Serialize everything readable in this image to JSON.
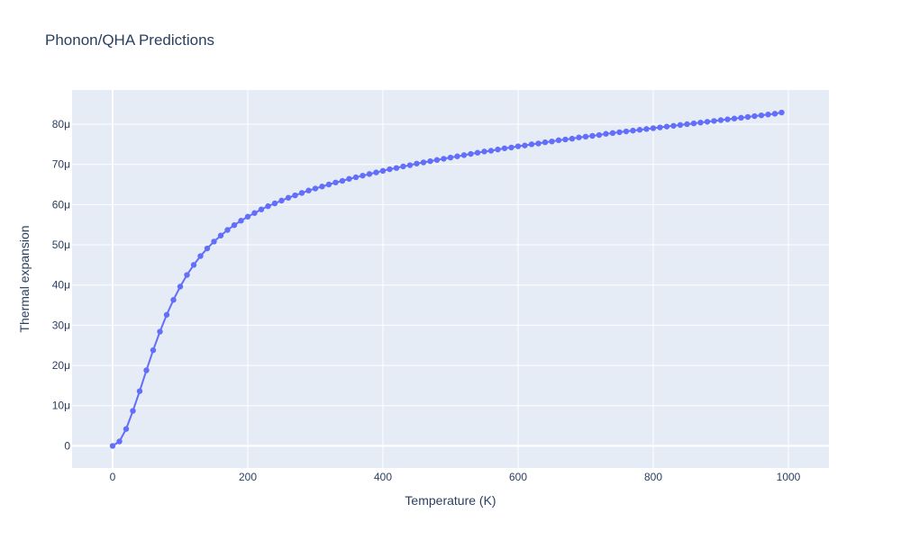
{
  "chart_data": {
    "type": "line",
    "title": "Phonon/QHA Predictions",
    "xlabel": "Temperature (K)",
    "ylabel": "Thermal expansion",
    "xlim": [
      -60,
      1060
    ],
    "ylim": [
      -5.5e-06,
      8.85e-05
    ],
    "x_ticks": [
      0,
      200,
      400,
      600,
      800,
      1000
    ],
    "x_tick_labels": [
      "0",
      "200",
      "400",
      "600",
      "800",
      "1000"
    ],
    "y_ticks": [
      0,
      1e-05,
      2e-05,
      3e-05,
      4e-05,
      5e-05,
      6e-05,
      7e-05,
      8e-05
    ],
    "y_tick_labels": [
      "0",
      "10μ",
      "20μ",
      "30μ",
      "40μ",
      "50μ",
      "60μ",
      "70μ",
      "80μ"
    ],
    "grid": true,
    "colors": {
      "series": "#636efa",
      "plot_background": "#e5ecf6",
      "grid": "#ffffff",
      "text": "#2a3f5f"
    },
    "series": [
      {
        "x": [
          0,
          10,
          20,
          30,
          40,
          50,
          60,
          70,
          80,
          90,
          100,
          110,
          120,
          130,
          140,
          150,
          160,
          170,
          180,
          190,
          200,
          210,
          220,
          230,
          240,
          250,
          260,
          270,
          280,
          290,
          300,
          310,
          320,
          330,
          340,
          350,
          360,
          370,
          380,
          390,
          400,
          410,
          420,
          430,
          440,
          450,
          460,
          470,
          480,
          490,
          500,
          510,
          520,
          530,
          540,
          550,
          560,
          570,
          580,
          590,
          600,
          610,
          620,
          630,
          640,
          650,
          660,
          670,
          680,
          690,
          700,
          710,
          720,
          730,
          740,
          750,
          760,
          770,
          780,
          790,
          800,
          810,
          820,
          830,
          840,
          850,
          860,
          870,
          880,
          890,
          900,
          910,
          920,
          930,
          940,
          950,
          960,
          970,
          980,
          990
        ],
        "y": [
          0,
          1.1e-06,
          4.2e-06,
          8.7e-06,
          1.36e-05,
          1.88e-05,
          2.38e-05,
          2.84e-05,
          3.26e-05,
          3.63e-05,
          3.96e-05,
          4.25e-05,
          4.5e-05,
          4.72e-05,
          4.91e-05,
          5.08e-05,
          5.23e-05,
          5.37e-05,
          5.49e-05,
          5.6e-05,
          5.7e-05,
          5.79e-05,
          5.88e-05,
          5.96e-05,
          6.03e-05,
          6.1e-05,
          6.17e-05,
          6.23e-05,
          6.29e-05,
          6.35e-05,
          6.4e-05,
          6.45e-05,
          6.5e-05,
          6.55e-05,
          6.59e-05,
          6.64e-05,
          6.68e-05,
          6.72e-05,
          6.76e-05,
          6.8e-05,
          6.84e-05,
          6.88e-05,
          6.91e-05,
          6.95e-05,
          6.98e-05,
          7.02e-05,
          7.05e-05,
          7.08e-05,
          7.11e-05,
          7.14e-05,
          7.17e-05,
          7.2e-05,
          7.23e-05,
          7.26e-05,
          7.29e-05,
          7.32e-05,
          7.34e-05,
          7.37e-05,
          7.4e-05,
          7.42e-05,
          7.45e-05,
          7.47e-05,
          7.5e-05,
          7.52e-05,
          7.55e-05,
          7.57e-05,
          7.6e-05,
          7.62e-05,
          7.64e-05,
          7.67e-05,
          7.69e-05,
          7.71e-05,
          7.73e-05,
          7.76e-05,
          7.78e-05,
          7.8e-05,
          7.82e-05,
          7.84e-05,
          7.86e-05,
          7.88e-05,
          7.9e-05,
          7.92e-05,
          7.94e-05,
          7.96e-05,
          7.98e-05,
          8e-05,
          8.02e-05,
          8.04e-05,
          8.06e-05,
          8.08e-05,
          8.1e-05,
          8.12e-05,
          8.14e-05,
          8.16e-05,
          8.18e-05,
          8.2e-05,
          8.22e-05,
          8.24e-05,
          8.26e-05,
          8.29e-05
        ]
      }
    ]
  }
}
